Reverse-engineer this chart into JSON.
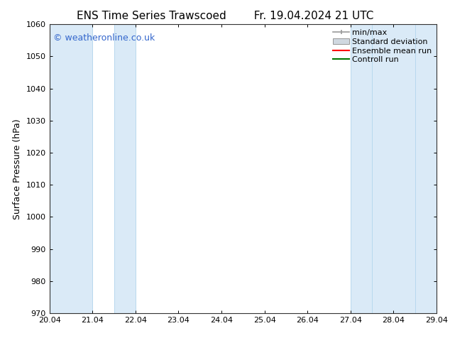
{
  "title_left": "ENS Time Series Trawscoed",
  "title_right": "Fr. 19.04.2024 21 UTC",
  "ylabel": "Surface Pressure (hPa)",
  "ylim": [
    970,
    1060
  ],
  "yticks": [
    970,
    980,
    990,
    1000,
    1010,
    1020,
    1030,
    1040,
    1050,
    1060
  ],
  "xlim_start": 0.0,
  "xlim_end": 9.0,
  "xtick_positions": [
    0,
    1,
    2,
    3,
    4,
    5,
    6,
    7,
    8,
    9
  ],
  "xtick_labels": [
    "20.04",
    "21.04",
    "22.04",
    "23.04",
    "24.04",
    "25.04",
    "26.04",
    "27.04",
    "28.04",
    "29.04"
  ],
  "watermark": "© weatheronline.co.uk",
  "watermark_color": "#3366cc",
  "bg_color": "#ffffff",
  "plot_bg_color": "#ffffff",
  "shaded_bands": [
    {
      "x_start": 0.0,
      "x_end": 1.0
    },
    {
      "x_start": 1.5,
      "x_end": 2.0
    },
    {
      "x_start": 7.0,
      "x_end": 7.5
    },
    {
      "x_start": 7.5,
      "x_end": 8.5
    },
    {
      "x_start": 8.5,
      "x_end": 9.0
    }
  ],
  "shaded_color": "#daeaf7",
  "legend_items": [
    {
      "label": "min/max",
      "color": "#999999",
      "style": "minmax"
    },
    {
      "label": "Standard deviation",
      "color": "#cccccc",
      "style": "stddev"
    },
    {
      "label": "Ensemble mean run",
      "color": "#ff0000",
      "style": "line"
    },
    {
      "label": "Controll run",
      "color": "#007700",
      "style": "line"
    }
  ],
  "title_fontsize": 11,
  "tick_fontsize": 8,
  "ylabel_fontsize": 9,
  "watermark_fontsize": 9,
  "legend_fontsize": 8
}
